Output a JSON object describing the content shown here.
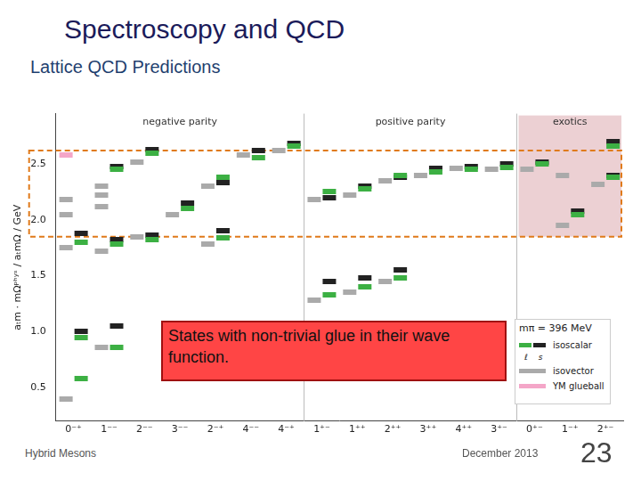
{
  "slide": {
    "title": "Spectroscopy and QCD",
    "subtitle": "Lattice QCD Predictions",
    "footer_left": "Hybrid Mesons",
    "footer_date": "December 2013",
    "page": "23"
  },
  "chart_data": {
    "type": "scatter",
    "y_label": "aₜm · mΩᵖʰʸˢ / aₜmΩ / GeV",
    "categories": [
      "0⁻⁺",
      "1⁻⁻",
      "2⁻⁻",
      "3⁻⁻",
      "2⁻⁺",
      "4⁻⁻",
      "4⁻⁺",
      "1⁺⁻",
      "1⁺⁺",
      "2⁺⁺",
      "3⁺⁺",
      "4⁺⁺",
      "3⁺⁻",
      "0⁺⁻",
      "1⁻⁺",
      "2⁺⁻"
    ],
    "sections": [
      {
        "name": "negative parity",
        "from": "0⁻⁺",
        "to": "4⁻⁺"
      },
      {
        "name": "positive parity",
        "from": "1⁺⁻",
        "to": "3⁺⁻"
      },
      {
        "name": "exotics",
        "from": "0⁺⁻",
        "to": "2⁺⁻"
      }
    ],
    "legend_title": "mπ = 396 MeV",
    "annotations": [
      {
        "text": "States with non-trivial glue in their wave function."
      }
    ],
    "series": [
      {
        "name": "ℓ",
        "group": "isoscalar",
        "color": "#3cb043",
        "x": [
          "0⁻⁺",
          "0⁻⁺",
          "0⁻⁺",
          "1⁻⁻",
          "1⁻⁻",
          "1⁻⁻",
          "2⁻⁻",
          "2⁻⁻",
          "3⁻⁻",
          "2⁻⁺",
          "2⁻⁺",
          "4⁻⁻",
          "4⁻⁺",
          "1⁺⁻",
          "1⁺⁻",
          "1⁺⁺",
          "1⁺⁺",
          "2⁺⁺",
          "2⁺⁺",
          "3⁺⁺",
          "4⁺⁺",
          "3⁺⁻",
          "0⁺⁻",
          "1⁻⁺",
          "2⁺⁻",
          "2⁺⁻"
        ],
        "values": [
          0.58,
          0.95,
          1.8,
          0.86,
          1.78,
          2.45,
          1.82,
          2.6,
          2.1,
          1.84,
          2.38,
          2.56,
          2.66,
          1.33,
          2.25,
          1.4,
          2.28,
          1.48,
          2.4,
          2.43,
          2.45,
          2.47,
          2.5,
          2.05,
          2.38,
          2.66
        ]
      },
      {
        "name": "s",
        "group": "isoscalar",
        "color": "#222222",
        "x": [
          "0⁻⁺",
          "0⁻⁺",
          "1⁻⁻",
          "1⁻⁻",
          "1⁻⁻",
          "2⁻⁻",
          "2⁻⁻",
          "3⁻⁻",
          "2⁻⁺",
          "2⁻⁺",
          "4⁻⁻",
          "4⁻⁺",
          "1⁺⁻",
          "1⁺⁻",
          "1⁺⁺",
          "1⁺⁺",
          "2⁺⁺",
          "2⁺⁺",
          "3⁺⁺",
          "4⁺⁺",
          "3⁺⁻",
          "0⁺⁻",
          "1⁻⁺",
          "2⁺⁻",
          "2⁺⁻"
        ],
        "values": [
          1.0,
          1.88,
          1.05,
          1.82,
          2.48,
          1.86,
          2.63,
          2.15,
          1.9,
          2.33,
          2.62,
          2.68,
          1.45,
          2.2,
          1.48,
          2.3,
          1.55,
          2.38,
          2.46,
          2.48,
          2.5,
          2.52,
          2.08,
          2.4,
          2.7
        ]
      },
      {
        "name": "isovector",
        "color": "#aaaaaa",
        "x": [
          "0⁻⁺",
          "0⁻⁺",
          "0⁻⁺",
          "0⁻⁺",
          "1⁻⁻",
          "1⁻⁻",
          "1⁻⁻",
          "1⁻⁻",
          "1⁻⁻",
          "2⁻⁻",
          "2⁻⁻",
          "3⁻⁻",
          "2⁻⁺",
          "2⁻⁺",
          "4⁻⁻",
          "4⁻⁺",
          "1⁺⁻",
          "1⁺⁻",
          "1⁺⁺",
          "1⁺⁺",
          "2⁺⁺",
          "2⁺⁺",
          "3⁺⁺",
          "4⁺⁺",
          "3⁺⁻",
          "0⁺⁻",
          "1⁻⁺",
          "1⁻⁺",
          "2⁺⁻"
        ],
        "values": [
          0.4,
          1.75,
          2.05,
          2.18,
          0.86,
          1.72,
          2.12,
          2.22,
          2.3,
          1.85,
          2.52,
          2.05,
          1.78,
          2.3,
          2.58,
          2.62,
          1.28,
          2.18,
          1.35,
          2.22,
          1.45,
          2.35,
          2.4,
          2.46,
          2.45,
          2.45,
          1.95,
          2.4,
          2.32
        ]
      },
      {
        "name": "YM glueball",
        "color": "#f4a6c8",
        "x": [
          "0⁻⁺"
        ],
        "values": [
          2.58
        ]
      }
    ],
    "ylim": [
      0.2,
      2.95
    ],
    "yticks": [
      0.5,
      {
        "value": 1,
        "label": "1.0"
      },
      1.5,
      {
        "value": 2,
        "label": "2.0"
      },
      2.5
    ],
    "grid": false,
    "tick_labels": true,
    "marker": "dash"
  }
}
